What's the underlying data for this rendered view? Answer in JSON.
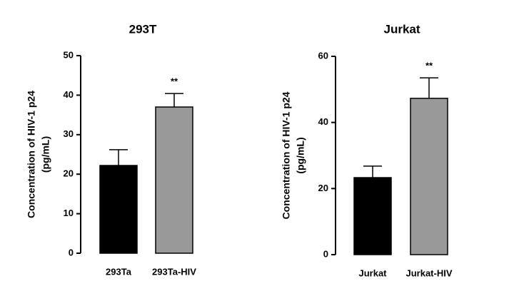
{
  "chart_data": [
    {
      "type": "bar",
      "title": "293T",
      "ylabel": [
        "Concentration of HIV-1 p24",
        "(pg/mL)"
      ],
      "categories": [
        "293Ta",
        "293Ta-HIV"
      ],
      "values": [
        22.2,
        37.0
      ],
      "errors": [
        4.0,
        3.4
      ],
      "colors": [
        "#000000",
        "#999999"
      ],
      "ylim": [
        0,
        50
      ],
      "yticks": [
        0,
        10,
        20,
        30,
        40,
        50
      ],
      "annotations": [
        {
          "category": "293Ta-HIV",
          "text": "**"
        }
      ]
    },
    {
      "type": "bar",
      "title": "Jurkat",
      "ylabel": [
        "Concentration of HIV-1 p24",
        "(pg/mL)"
      ],
      "categories": [
        "Jurkat",
        "Jurkat-HIV"
      ],
      "values": [
        23.3,
        47.3
      ],
      "errors": [
        3.5,
        6.2
      ],
      "colors": [
        "#000000",
        "#999999"
      ],
      "ylim": [
        0,
        60
      ],
      "yticks": [
        0,
        20,
        40,
        60
      ],
      "annotations": [
        {
          "category": "Jurkat-HIV",
          "text": "**"
        }
      ]
    }
  ]
}
